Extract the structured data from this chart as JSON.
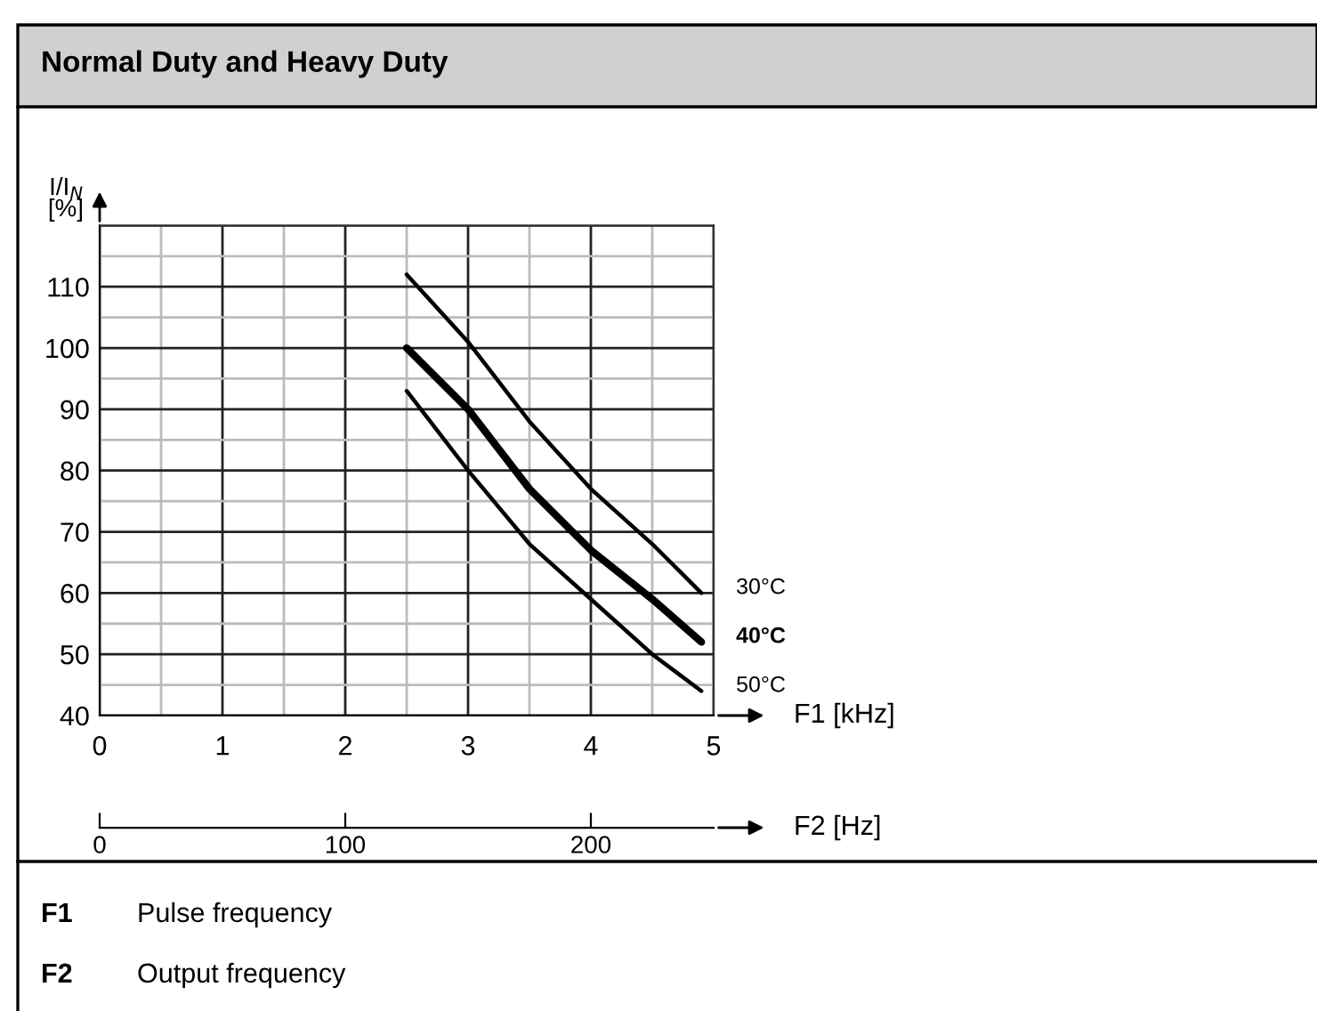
{
  "chart_data": {
    "type": "line",
    "title": "Normal Duty and Heavy Duty",
    "ylabel": "I/I$_{N}$\n[%]",
    "xlabel": "F1 [kHz]",
    "x2label": "F2 [Hz]",
    "series": [
      {
        "name": "30°C",
        "color": "#000000",
        "x": [
          2.5,
          3,
          3.5,
          4,
          4.5,
          4.9
        ],
        "values": [
          112,
          101,
          88,
          77,
          68,
          60
        ]
      },
      {
        "name": "40°C",
        "color": "#000000",
        "x": [
          2.5,
          3,
          3.5,
          4,
          4.5,
          4.9
        ],
        "values": [
          100,
          90,
          77,
          67,
          59,
          52
        ]
      },
      {
        "name": "50°C",
        "color": "#000000",
        "x": [
          2.5,
          3,
          3.5,
          4,
          4.5,
          4.9
        ],
        "values": [
          93,
          80,
          68,
          59,
          50,
          44
        ]
      }
    ],
    "xlim": [
      0,
      5
    ],
    "xticks": [
      0,
      1,
      2,
      3,
      4,
      5
    ],
    "ylim": [
      40,
      120
    ],
    "yticks": [
      40,
      50,
      60,
      70,
      80,
      90,
      100,
      110,
      {
        "value": 120,
        "label": null
      }
    ],
    "x2lim": [
      0,
      250
    ],
    "x2ticks": [
      0,
      100,
      200
    ],
    "grid": true,
    "legend": false,
    "marker": "none",
    "line_style": "solid",
    "annotations": [
      "F1",
      "Pulse frequency",
      "F2",
      "Output frequency"
    ]
  }
}
